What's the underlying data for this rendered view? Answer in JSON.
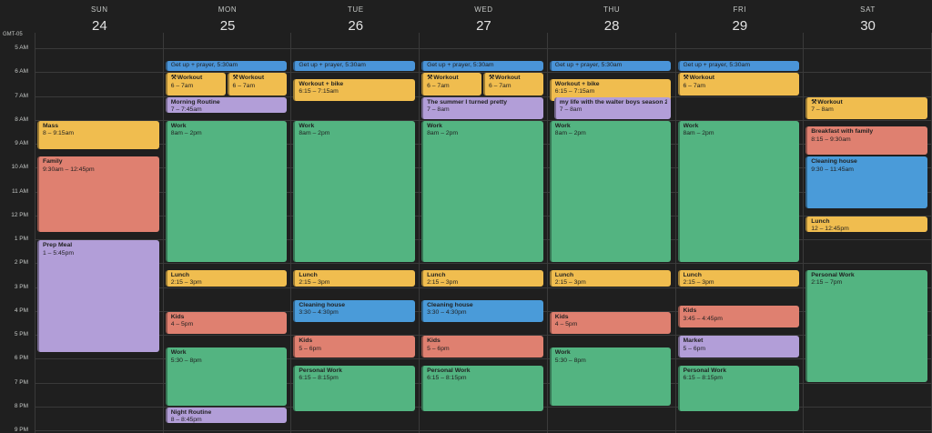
{
  "timezone": "GMT-05",
  "days": [
    {
      "name": "SUN",
      "date": "24"
    },
    {
      "name": "MON",
      "date": "25"
    },
    {
      "name": "TUE",
      "date": "26"
    },
    {
      "name": "WED",
      "date": "27"
    },
    {
      "name": "THU",
      "date": "28"
    },
    {
      "name": "FRI",
      "date": "29"
    },
    {
      "name": "SAT",
      "date": "30"
    }
  ],
  "hours": [
    "5 AM",
    "6 AM",
    "7 AM",
    "8 AM",
    "9 AM",
    "10 AM",
    "11 AM",
    "12 PM",
    "1 PM",
    "2 PM",
    "3 PM",
    "4 PM",
    "5 PM",
    "6 PM",
    "7 PM",
    "8 PM",
    "9 PM"
  ],
  "colors": {
    "yellow": "#f0bd4f",
    "red": "#df8070",
    "green": "#53b481",
    "blue": "#4a9bd9",
    "purple": "#b29ed8",
    "header_blue": "#4a94d8"
  },
  "events": [
    {
      "day": 0,
      "start": 8,
      "end": 9.25,
      "title": "Mass",
      "time": "8 – 9:15am",
      "color": "yellow"
    },
    {
      "day": 0,
      "start": 9.5,
      "end": 12.75,
      "title": "Family",
      "time": "9:30am – 12:45pm",
      "color": "red"
    },
    {
      "day": 0,
      "start": 13,
      "end": 17.75,
      "title": "Prep Meal",
      "time": "1 – 5:45pm",
      "color": "purple"
    },
    {
      "day": 1,
      "start": 5.5,
      "end": 6,
      "title": "Get up + prayer",
      "time": "5:30am",
      "color": "header_blue",
      "inline": true
    },
    {
      "day": 1,
      "start": 6,
      "end": 7,
      "title": "Workout",
      "time": "6 – 7am",
      "color": "yellow",
      "icon": "⚒",
      "half": 0
    },
    {
      "day": 1,
      "start": 6,
      "end": 7,
      "title": "Workout",
      "time": "6 – 7am",
      "color": "yellow",
      "icon": "⚒",
      "half": 1
    },
    {
      "day": 1,
      "start": 7,
      "end": 7.75,
      "title": "Morning Routine",
      "time": "7 – 7:45am",
      "color": "purple"
    },
    {
      "day": 1,
      "start": 8,
      "end": 14,
      "title": "Work",
      "time": "8am – 2pm",
      "color": "green"
    },
    {
      "day": 1,
      "start": 14.25,
      "end": 15,
      "title": "Lunch",
      "time": "2:15 – 3pm",
      "color": "yellow"
    },
    {
      "day": 1,
      "start": 16,
      "end": 17,
      "title": "Kids",
      "time": "4 – 5pm",
      "color": "red"
    },
    {
      "day": 1,
      "start": 17.5,
      "end": 20,
      "title": "Work",
      "time": "5:30 – 8pm",
      "color": "green"
    },
    {
      "day": 1,
      "start": 20,
      "end": 20.75,
      "title": "Night Routine",
      "time": "8 – 8:45pm",
      "color": "purple"
    },
    {
      "day": 2,
      "start": 5.5,
      "end": 6,
      "title": "Get up + prayer",
      "time": "5:30am",
      "color": "header_blue",
      "inline": true
    },
    {
      "day": 2,
      "start": 6.25,
      "end": 7.25,
      "title": "Workout + bike",
      "time": "6:15 – 7:15am",
      "color": "yellow"
    },
    {
      "day": 2,
      "start": 8,
      "end": 14,
      "title": "Work",
      "time": "8am – 2pm",
      "color": "green"
    },
    {
      "day": 2,
      "start": 14.25,
      "end": 15,
      "title": "Lunch",
      "time": "2:15 – 3pm",
      "color": "yellow"
    },
    {
      "day": 2,
      "start": 15.5,
      "end": 16.5,
      "title": "Cleaning house",
      "time": "3:30 – 4:30pm",
      "color": "blue"
    },
    {
      "day": 2,
      "start": 17,
      "end": 18,
      "title": "Kids",
      "time": "5 – 6pm",
      "color": "red"
    },
    {
      "day": 2,
      "start": 18.25,
      "end": 20.25,
      "title": "Personal Work",
      "time": "6:15 – 8:15pm",
      "color": "green"
    },
    {
      "day": 3,
      "start": 5.5,
      "end": 6,
      "title": "Get up + prayer",
      "time": "5:30am",
      "color": "header_blue",
      "inline": true
    },
    {
      "day": 3,
      "start": 6,
      "end": 7,
      "title": "Workout",
      "time": "6 – 7am",
      "color": "yellow",
      "icon": "⚒",
      "half": 0
    },
    {
      "day": 3,
      "start": 6,
      "end": 7,
      "title": "Workout",
      "time": "6 – 7am",
      "color": "yellow",
      "icon": "⚒",
      "half": 1
    },
    {
      "day": 3,
      "start": 7,
      "end": 8,
      "title": "The summer I turned pretty",
      "time": "7 – 8am",
      "color": "purple"
    },
    {
      "day": 3,
      "start": 8,
      "end": 14,
      "title": "Work",
      "time": "8am – 2pm",
      "color": "green"
    },
    {
      "day": 3,
      "start": 14.25,
      "end": 15,
      "title": "Lunch",
      "time": "2:15 – 3pm",
      "color": "yellow"
    },
    {
      "day": 3,
      "start": 15.5,
      "end": 16.5,
      "title": "Cleaning house",
      "time": "3:30 – 4:30pm",
      "color": "blue"
    },
    {
      "day": 3,
      "start": 17,
      "end": 18,
      "title": "Kids",
      "time": "5 – 6pm",
      "color": "red"
    },
    {
      "day": 3,
      "start": 18.25,
      "end": 20.25,
      "title": "Personal Work",
      "time": "6:15 – 8:15pm",
      "color": "green"
    },
    {
      "day": 4,
      "start": 5.5,
      "end": 6,
      "title": "Get up + prayer",
      "time": "5:30am",
      "color": "header_blue",
      "inline": true
    },
    {
      "day": 4,
      "start": 6.25,
      "end": 7.25,
      "title": "Workout + bike",
      "time": "6:15 – 7:15am",
      "color": "yellow"
    },
    {
      "day": 4,
      "start": 7,
      "end": 8,
      "title": "my life with the walter boys season 2",
      "time": "7 – 8am",
      "color": "purple",
      "offset": true
    },
    {
      "day": 4,
      "start": 8,
      "end": 14,
      "title": "Work",
      "time": "8am – 2pm",
      "color": "green"
    },
    {
      "day": 4,
      "start": 14.25,
      "end": 15,
      "title": "Lunch",
      "time": "2:15 – 3pm",
      "color": "yellow"
    },
    {
      "day": 4,
      "start": 16,
      "end": 17,
      "title": "Kids",
      "time": "4 – 5pm",
      "color": "red"
    },
    {
      "day": 4,
      "start": 17.5,
      "end": 20,
      "title": "Work",
      "time": "5:30 – 8pm",
      "color": "green"
    },
    {
      "day": 5,
      "start": 5.5,
      "end": 6,
      "title": "Get up + prayer",
      "time": "5:30am",
      "color": "header_blue",
      "inline": true
    },
    {
      "day": 5,
      "start": 6,
      "end": 7,
      "title": "Workout",
      "time": "6 – 7am",
      "color": "yellow",
      "icon": "⚒"
    },
    {
      "day": 5,
      "start": 8,
      "end": 14,
      "title": "Work",
      "time": "8am – 2pm",
      "color": "green"
    },
    {
      "day": 5,
      "start": 14.25,
      "end": 15,
      "title": "Lunch",
      "time": "2:15 – 3pm",
      "color": "yellow"
    },
    {
      "day": 5,
      "start": 15.75,
      "end": 16.75,
      "title": "Kids",
      "time": "3:45 – 4:45pm",
      "color": "red"
    },
    {
      "day": 5,
      "start": 17,
      "end": 18,
      "title": "Market",
      "time": "5 – 6pm",
      "color": "purple"
    },
    {
      "day": 5,
      "start": 18.25,
      "end": 20.25,
      "title": "Personal Work",
      "time": "6:15 – 8:15pm",
      "color": "green"
    },
    {
      "day": 6,
      "start": 7,
      "end": 8,
      "title": "Workout",
      "time": "7 – 8am",
      "color": "yellow",
      "icon": "⚒"
    },
    {
      "day": 6,
      "start": 8.25,
      "end": 9.5,
      "title": "Breakfast with family",
      "time": "8:15 – 9:30am",
      "color": "red"
    },
    {
      "day": 6,
      "start": 9.5,
      "end": 11.75,
      "title": "Cleaning house",
      "time": "9:30 – 11:45am",
      "color": "blue"
    },
    {
      "day": 6,
      "start": 12,
      "end": 12.75,
      "title": "Lunch",
      "time": "12 – 12:45pm",
      "color": "yellow"
    },
    {
      "day": 6,
      "start": 14.25,
      "end": 19,
      "title": "Personal Work",
      "time": "2:15 – 7pm",
      "color": "green"
    }
  ]
}
